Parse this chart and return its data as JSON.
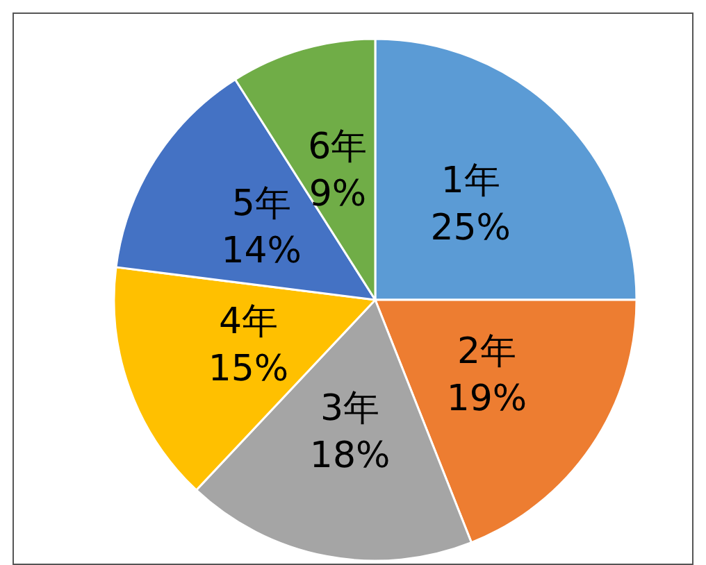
{
  "chart_data": {
    "type": "pie",
    "categories": [
      "1年",
      "2年",
      "3年",
      "4年",
      "5年",
      "6年"
    ],
    "values": [
      25,
      19,
      18,
      15,
      14,
      9
    ],
    "colors": [
      "#5b9bd5",
      "#ed7d31",
      "#a5a5a5",
      "#ffc000",
      "#4472c4",
      "#70ad47"
    ],
    "value_labels": [
      "25%",
      "19%",
      "18%",
      "15%",
      "14%",
      "9%"
    ],
    "legend": false
  }
}
